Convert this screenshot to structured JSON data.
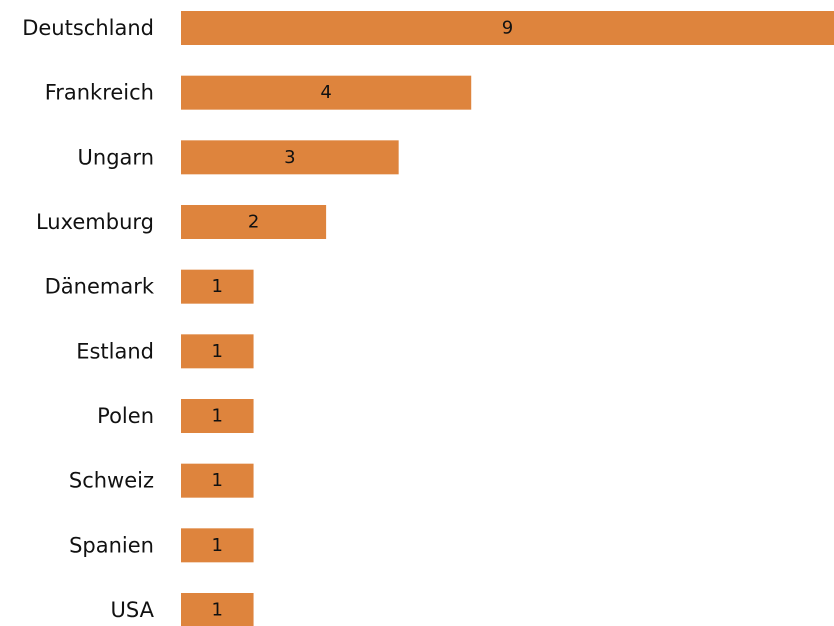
{
  "chart_data": {
    "type": "bar",
    "orientation": "horizontal",
    "categories": [
      "Deutschland",
      "Frankreich",
      "Ungarn",
      "Luxemburg",
      "Dänemark",
      "Estland",
      "Polen",
      "Schweiz",
      "Spanien",
      "USA"
    ],
    "values": [
      9,
      4,
      3,
      2,
      1,
      1,
      1,
      1,
      1,
      1
    ],
    "data_labels": true,
    "xlim": [
      0,
      9
    ],
    "grid": false,
    "legend": false,
    "bar_color": "#DE843D"
  }
}
